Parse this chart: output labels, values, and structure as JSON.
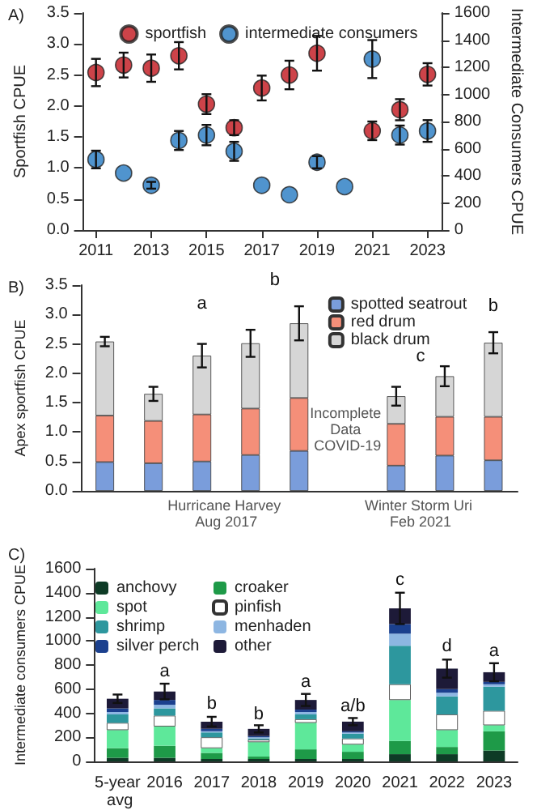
{
  "chart_data": [
    {
      "type": "scatter",
      "title": "A)",
      "ylabel": "Sportfish CPUE",
      "y2label": "Intermediate Consumers CPUE",
      "x": [
        2011,
        2012,
        2013,
        2014,
        2015,
        2016,
        2017,
        2018,
        2019,
        2020,
        2021,
        2022,
        2023
      ],
      "series": [
        {
          "name": "sportfish",
          "color": "#c0141c",
          "values": [
            2.54,
            2.66,
            2.61,
            2.81,
            2.03,
            1.65,
            2.29,
            2.5,
            2.85,
            null,
            1.6,
            1.94,
            2.51
          ],
          "errors": [
            0.22,
            0.2,
            0.22,
            0.22,
            0.16,
            0.12,
            0.2,
            0.23,
            0.28,
            null,
            0.15,
            0.17,
            0.18
          ]
        },
        {
          "name": "intermediate consumers",
          "color": "#2479c2",
          "axis": "y2",
          "values": [
            520,
            420,
            330,
            660,
            700,
            580,
            330,
            260,
            500,
            320,
            1260,
            700,
            730
          ],
          "errors": [
            65,
            null,
            25,
            70,
            75,
            70,
            null,
            null,
            45,
            null,
            140,
            70,
            80
          ]
        }
      ],
      "xlim": [
        2010.5,
        2023.5
      ],
      "xticks": [
        2011,
        2013,
        2015,
        2017,
        2019,
        2021,
        2023
      ],
      "ylim": [
        0,
        3.5
      ],
      "yticks": [
        {
          "value": 0,
          "label": "0.0"
        },
        {
          "value": 0.5,
          "label": "0.5"
        },
        {
          "value": 1,
          "label": "1.0"
        },
        {
          "value": 1.5,
          "label": "1.5"
        },
        {
          "value": 2,
          "label": "2.0"
        },
        {
          "value": 2.5,
          "label": "2.5"
        },
        {
          "value": 3,
          "label": "3.0"
        },
        {
          "value": 3.5,
          "label": "3.5"
        }
      ],
      "y2lim": [
        0,
        1600
      ],
      "y2ticks": [
        0,
        200,
        400,
        600,
        800,
        1000,
        1200,
        1400,
        1600
      ],
      "marker": "circle",
      "legend": "top",
      "grid": false
    },
    {
      "type": "bar",
      "stacked": true,
      "title": "B)",
      "ylabel": "Apex sportfish CPUE",
      "categories": [
        null,
        null,
        null,
        null,
        null,
        null,
        null,
        null,
        null
      ],
      "series": [
        {
          "name": "spotted seatrout",
          "color": "#7a9ddb",
          "values": [
            0.49,
            0.47,
            0.5,
            0.61,
            0.68,
            null,
            0.43,
            0.6,
            0.52
          ]
        },
        {
          "name": "red drum",
          "color": "#f58f79",
          "values": [
            0.79,
            0.72,
            0.8,
            0.79,
            0.9,
            null,
            0.71,
            0.66,
            0.74
          ]
        },
        {
          "name": "black drum",
          "color": "#d6d6d6",
          "values": [
            1.26,
            0.46,
            1.0,
            1.11,
            1.27,
            null,
            0.47,
            0.69,
            1.26
          ],
          "errors": [
            0.08,
            0.12,
            0.2,
            0.23,
            0.29,
            null,
            0.16,
            0.17,
            0.18
          ]
        }
      ],
      "ylim": [
        0,
        3.5
      ],
      "yticks": [
        {
          "value": 0,
          "label": "0.0"
        },
        {
          "value": 0.5,
          "label": "0.5"
        },
        {
          "value": 1,
          "label": "1.0"
        },
        {
          "value": 1.5,
          "label": "1.5"
        },
        {
          "value": 2,
          "label": "2.0"
        },
        {
          "value": 2.5,
          "label": "2.5"
        },
        {
          "value": 3,
          "label": "3.0"
        },
        {
          "value": 3.5,
          "label": "3.5"
        }
      ],
      "annotations": [
        "a",
        "b",
        "c",
        "b",
        "Incomplete Data COVID-19",
        "Hurricane Harvey Aug 2017",
        "Winter Storm Uri Feb 2021"
      ],
      "legend": "top right",
      "grid": false
    },
    {
      "type": "bar",
      "stacked": true,
      "title": "C)",
      "ylabel": "Intermediate consumers CPUE",
      "categories": [
        "5-year avg",
        "2016",
        "2017",
        "2018",
        "2019",
        "2020",
        "2021",
        "2022",
        "2023"
      ],
      "series": [
        {
          "name": "anchovy",
          "color": "#0e3b26",
          "values": [
            30,
            30,
            20,
            20,
            20,
            20,
            60,
            60,
            90
          ]
        },
        {
          "name": "croaker",
          "color": "#1e9a48",
          "values": [
            80,
            100,
            50,
            20,
            80,
            60,
            110,
            60,
            160
          ]
        },
        {
          "name": "spot",
          "color": "#5ee89a",
          "values": [
            150,
            160,
            40,
            120,
            220,
            60,
            340,
            140,
            50
          ]
        },
        {
          "name": "pinfish",
          "color": "#ffffff",
          "values": [
            60,
            90,
            90,
            20,
            30,
            50,
            130,
            130,
            120
          ]
        },
        {
          "name": "shrimp",
          "color": "#2d979e",
          "values": [
            70,
            60,
            40,
            10,
            40,
            40,
            320,
            150,
            200
          ]
        },
        {
          "name": "menhaden",
          "color": "#8db6e2",
          "values": [
            20,
            30,
            10,
            10,
            20,
            10,
            100,
            30,
            20
          ]
        },
        {
          "name": "silver perch",
          "color": "#1b408e",
          "values": [
            30,
            40,
            20,
            10,
            20,
            10,
            80,
            30,
            20
          ]
        },
        {
          "name": "other",
          "color": "#1d1a38",
          "values": [
            80,
            70,
            60,
            60,
            80,
            80,
            130,
            170,
            80
          ],
          "errors": [
            35,
            65,
            40,
            30,
            50,
            30,
            130,
            75,
            75
          ]
        }
      ],
      "ylim": [
        0,
        1600
      ],
      "yticks": [
        0,
        200,
        400,
        600,
        800,
        1000,
        1200,
        1400,
        1600
      ],
      "annotations": [
        {
          "text": "a",
          "x": "2016",
          "y": 640
        },
        {
          "text": "b",
          "x": "2017",
          "y": 370
        },
        {
          "text": "b",
          "x": "2018",
          "y": 285
        },
        {
          "text": "a",
          "x": "2019",
          "y": 550
        },
        {
          "text": "a/b",
          "x": "2020",
          "y": 350
        },
        {
          "text": "c",
          "x": "2021",
          "y": 1395
        },
        {
          "text": "d",
          "x": "2022",
          "y": 850
        },
        {
          "text": "a",
          "x": "2023",
          "y": 810
        }
      ],
      "legend": "top left",
      "grid": false
    }
  ]
}
